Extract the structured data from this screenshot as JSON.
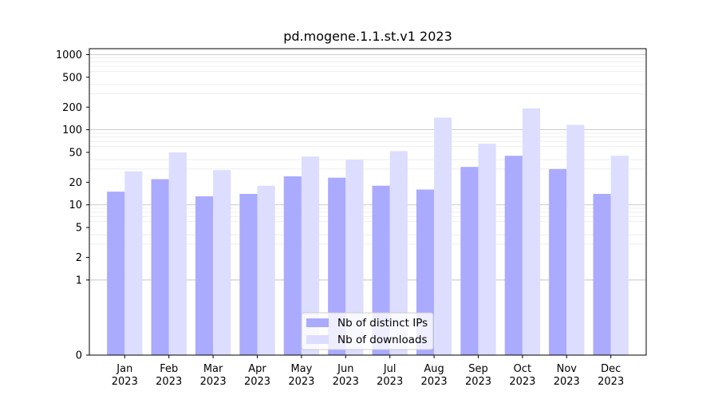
{
  "chart_data": {
    "type": "bar",
    "title": "pd.mogene.1.1.st.v1 2023",
    "xlabel": "",
    "ylabel": "",
    "yscale": "symlog",
    "ylim": [
      0,
      1200
    ],
    "y_ticks": [
      0,
      1,
      2,
      5,
      10,
      20,
      50,
      100,
      200,
      500,
      1000
    ],
    "y_tick_labels": [
      "0",
      "1",
      "2",
      "5",
      "10",
      "20",
      "50",
      "100",
      "200",
      "500",
      "1000"
    ],
    "categories": [
      [
        "Jan",
        "2023"
      ],
      [
        "Feb",
        "2023"
      ],
      [
        "Mar",
        "2023"
      ],
      [
        "Apr",
        "2023"
      ],
      [
        "May",
        "2023"
      ],
      [
        "Jun",
        "2023"
      ],
      [
        "Jul",
        "2023"
      ],
      [
        "Aug",
        "2023"
      ],
      [
        "Sep",
        "2023"
      ],
      [
        "Oct",
        "2023"
      ],
      [
        "Nov",
        "2023"
      ],
      [
        "Dec",
        "2023"
      ]
    ],
    "series": [
      {
        "name": "Nb of distinct IPs",
        "color": "#aaaaff",
        "values": [
          15,
          22,
          13,
          14,
          24,
          23,
          18,
          16,
          32,
          45,
          30,
          14
        ]
      },
      {
        "name": "Nb of downloads",
        "color": "#ddddff",
        "values": [
          28,
          50,
          29,
          18,
          44,
          40,
          52,
          145,
          65,
          192,
          116,
          45
        ]
      }
    ],
    "grid": true,
    "legend_position": "bottom-center"
  }
}
